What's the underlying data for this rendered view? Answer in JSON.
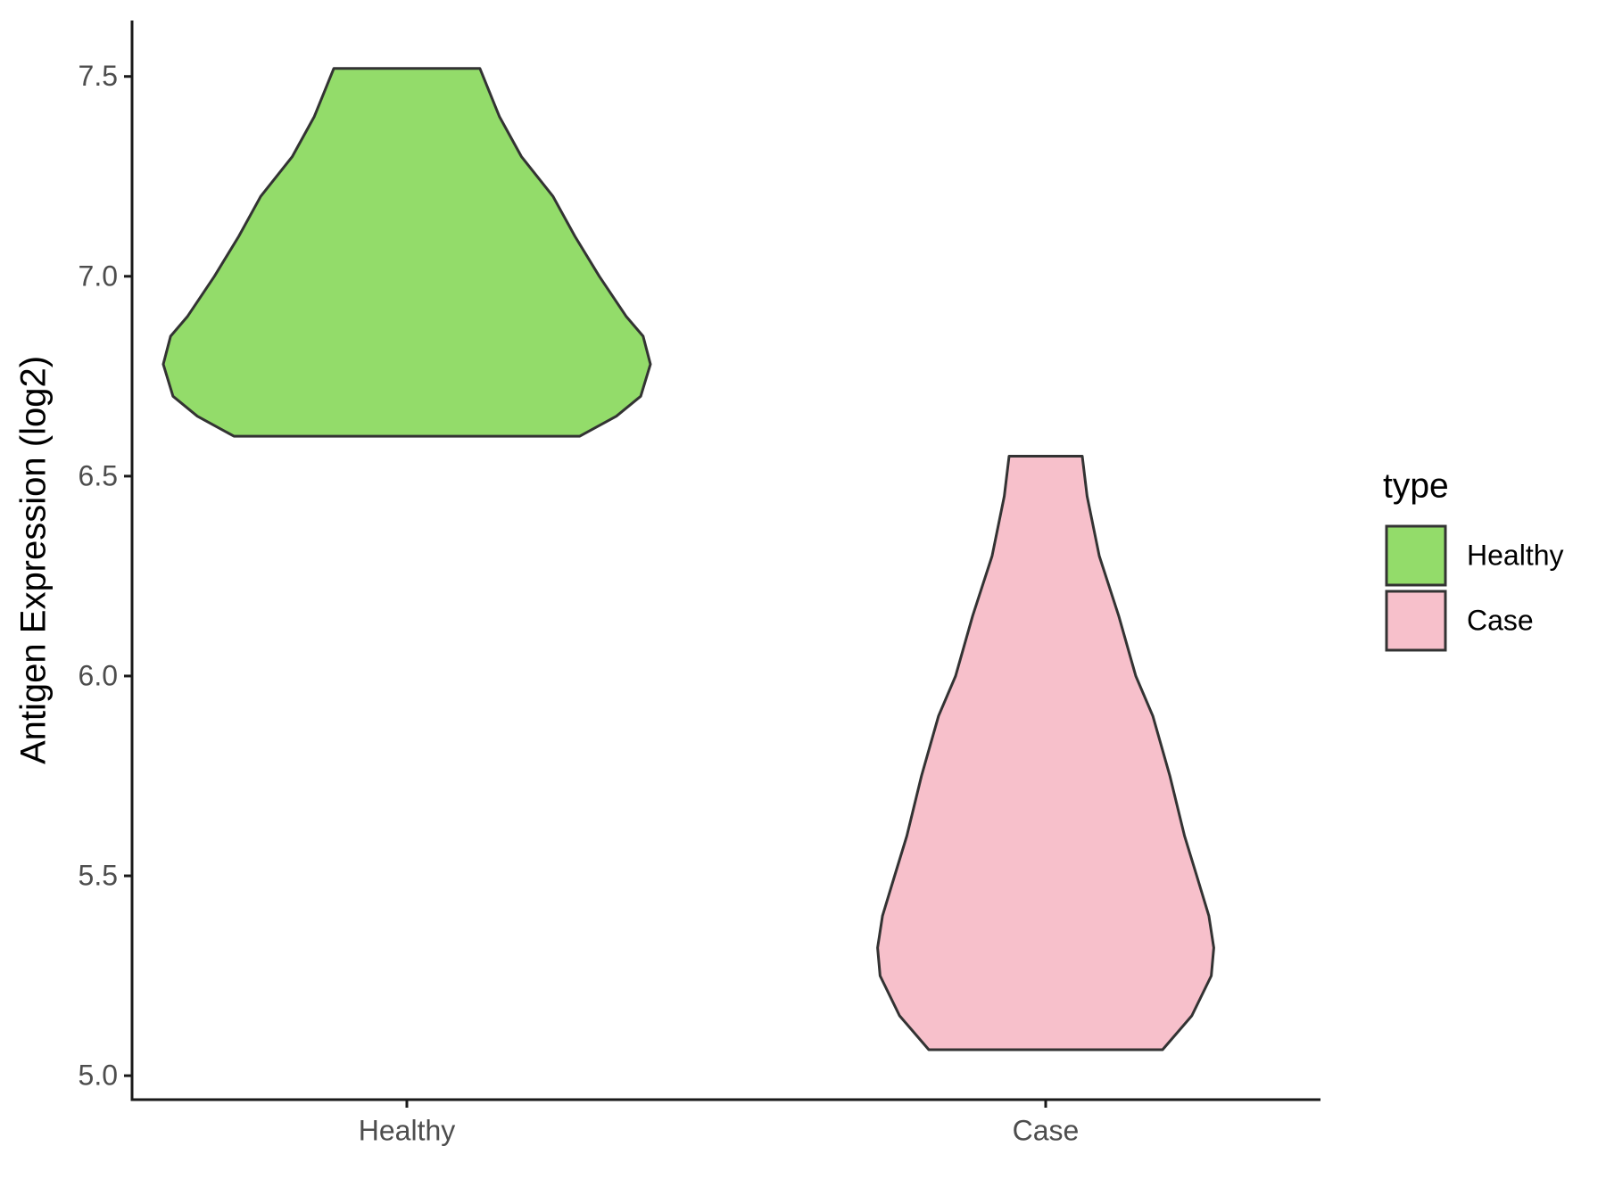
{
  "chart_data": {
    "type": "violin",
    "y_label": "Antigen Expression (log2)",
    "categories": [
      "Healthy",
      "Case"
    ],
    "legend_title": "type",
    "legend": "right",
    "ylim": [
      4.94,
      7.64
    ],
    "yticks": [
      {
        "value": 5,
        "label": "5.0"
      },
      5.5,
      {
        "value": 6,
        "label": "6.0"
      },
      6.5,
      {
        "value": 7,
        "label": "7.0"
      },
      7.5
    ],
    "series": [
      {
        "name": "Healthy",
        "color": "#93dc6a",
        "y": [
          6.6,
          6.65,
          6.7,
          6.78,
          6.85,
          6.9,
          7.0,
          7.1,
          7.2,
          7.3,
          7.4,
          7.52
        ],
        "density": [
          0.71,
          0.86,
          0.96,
          1.0,
          0.97,
          0.9,
          0.79,
          0.69,
          0.6,
          0.47,
          0.38,
          0.3
        ]
      },
      {
        "name": "Case",
        "color": "#f7c0cb",
        "y": [
          5.065,
          5.15,
          5.25,
          5.32,
          5.4,
          5.5,
          5.6,
          5.75,
          5.9,
          6.0,
          6.15,
          6.3,
          6.45,
          6.55
        ],
        "density": [
          0.48,
          0.6,
          0.68,
          0.69,
          0.67,
          0.62,
          0.57,
          0.51,
          0.44,
          0.37,
          0.3,
          0.22,
          0.17,
          0.15
        ]
      }
    ]
  }
}
